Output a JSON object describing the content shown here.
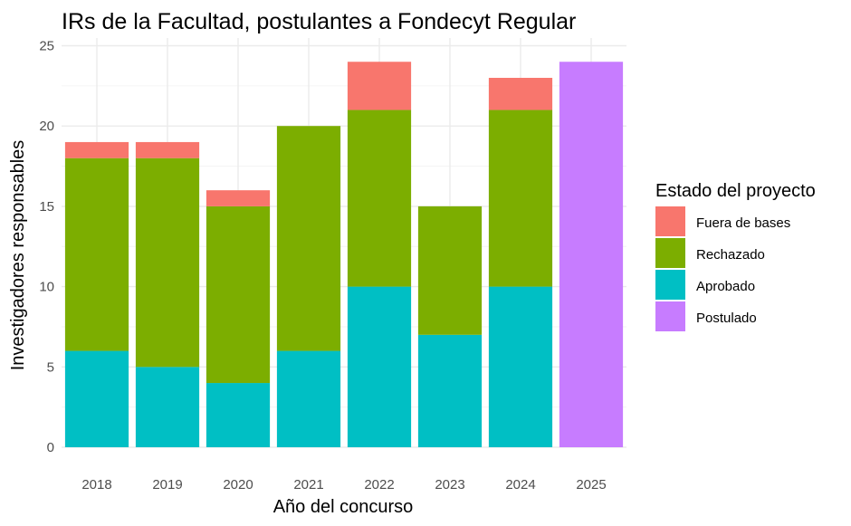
{
  "chart_data": {
    "type": "bar",
    "stacked": true,
    "title": "IRs de la Facultad, postulantes a Fondecyt Regular",
    "xlabel": "Año del concurso",
    "ylabel": "Investigadores responsables",
    "categories": [
      "2018",
      "2019",
      "2020",
      "2021",
      "2022",
      "2023",
      "2024",
      "2025"
    ],
    "ylim": [
      0,
      25
    ],
    "yticks": [
      "0",
      "5",
      "10",
      "15",
      "20",
      "25"
    ],
    "ytick_values": [
      0,
      5,
      10,
      15,
      20,
      25
    ],
    "grid": true,
    "legend": {
      "title": "Estado del proyecto",
      "position": "right"
    },
    "series": [
      {
        "name": "Aprobado",
        "color": "#00BFC4",
        "values": [
          6,
          5,
          4,
          6,
          10,
          7,
          10,
          0
        ]
      },
      {
        "name": "Rechazado",
        "color": "#7CAE00",
        "values": [
          12,
          13,
          11,
          14,
          11,
          8,
          11,
          0
        ]
      },
      {
        "name": "Fuera de bases",
        "color": "#F8766D",
        "values": [
          1,
          1,
          1,
          0,
          3,
          0,
          2,
          0
        ]
      },
      {
        "name": "Postulado",
        "color": "#C77CFF",
        "values": [
          0,
          0,
          0,
          0,
          0,
          0,
          0,
          24
        ]
      }
    ],
    "legend_order": [
      "Fuera de bases",
      "Rechazado",
      "Aprobado",
      "Postulado"
    ]
  }
}
